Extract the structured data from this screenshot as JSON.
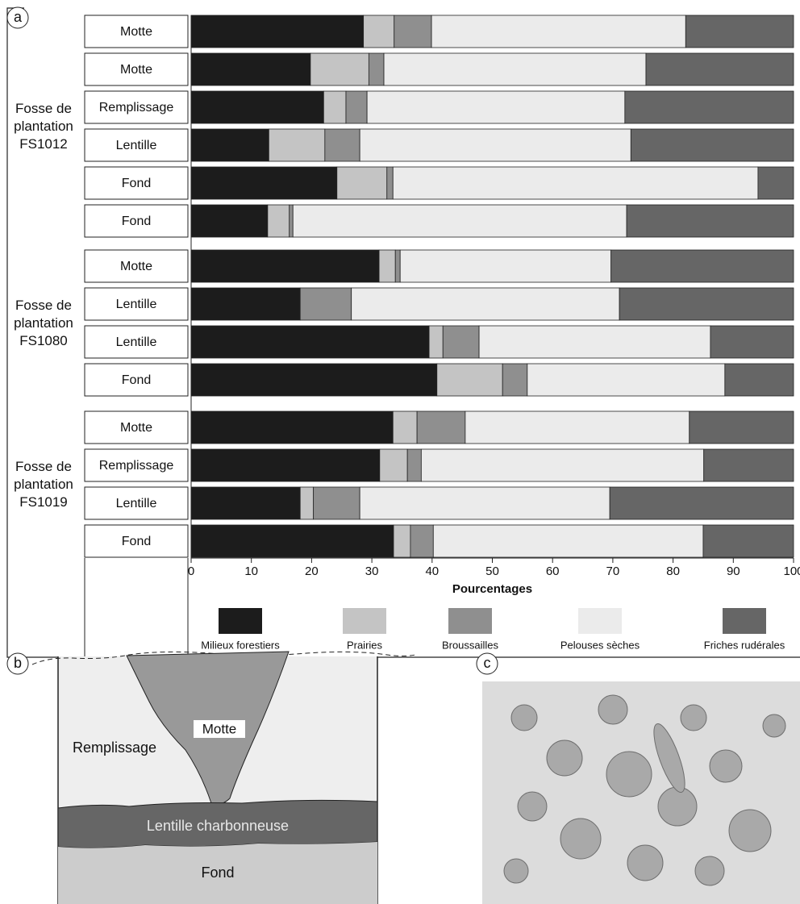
{
  "chart_data": {
    "type": "stacked-barh",
    "groups": [
      {
        "label": "Fosse de plantation FS1012",
        "categories": [
          "Motte",
          "Motte",
          "Remplissage",
          "Lentille",
          "Fond",
          "Fond"
        ]
      },
      {
        "label": "Fosse de plantation FS1080",
        "categories": [
          "Motte",
          "Lentille",
          "Lentille",
          "Fond"
        ]
      },
      {
        "label": "Fosse de plantation FS1019",
        "categories": [
          "Motte",
          "Remplissage",
          "Lentille",
          "Fond"
        ]
      }
    ],
    "series": [
      {
        "name": "Milieux forestiers",
        "color": "#1c1c1c",
        "values": [
          28.6,
          19.8,
          22.0,
          12.9,
          24.2,
          12.7,
          31.2,
          18.1,
          39.5,
          40.8,
          33.5,
          31.3,
          18.1,
          33.6
        ]
      },
      {
        "name": "Prairies",
        "color": "#c4c4c4",
        "values": [
          5.1,
          9.7,
          3.7,
          9.3,
          8.3,
          3.6,
          2.7,
          0,
          2.3,
          10.9,
          4.0,
          4.6,
          2.2,
          2.8
        ]
      },
      {
        "name": "Broussailles",
        "color": "#8f8f8f",
        "values": [
          6.2,
          2.5,
          3.5,
          5.8,
          1.0,
          0.6,
          0.8,
          8.5,
          6.0,
          4.1,
          8.0,
          2.3,
          7.7,
          3.8
        ]
      },
      {
        "name": "Pelouses sèches",
        "color": "#ebebeb",
        "values": [
          42.2,
          43.5,
          42.8,
          45.0,
          60.6,
          55.4,
          35.0,
          44.5,
          38.4,
          32.8,
          37.2,
          46.9,
          41.5,
          44.8
        ]
      },
      {
        "name": "Friches rudérales",
        "color": "#666666",
        "values": [
          17.9,
          24.5,
          28.0,
          27.0,
          5.9,
          27.7,
          30.3,
          28.9,
          13.8,
          11.4,
          17.3,
          14.9,
          30.5,
          15.0
        ]
      }
    ],
    "xlim": [
      0,
      100
    ],
    "xticks": [
      0,
      10,
      20,
      30,
      40,
      50,
      60,
      70,
      80,
      90,
      100
    ],
    "xlabel": "Pourcentages"
  },
  "panel_labels": [
    "a",
    "b",
    "c"
  ],
  "diagram": {
    "motte": "Motte",
    "remplissage": "Remplissage",
    "lentille": "Lentille charbonneuse",
    "fond": "Fond"
  }
}
